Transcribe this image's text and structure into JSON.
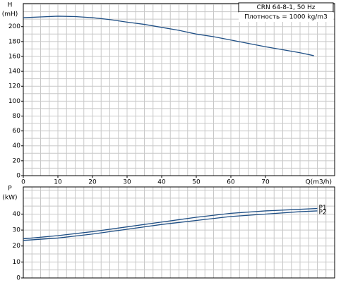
{
  "chart_data": [
    {
      "type": "line",
      "title": "CRN 64-8-1, 50 Hz",
      "subtitle": "Плотность = 1000 kg/m3",
      "ylabel": "H",
      "ylabel_unit": "(mH)",
      "xlabel": "Q(m3/h)",
      "x": [
        0,
        5,
        10,
        15,
        20,
        25,
        30,
        35,
        40,
        45,
        50,
        55,
        60,
        65,
        70,
        75,
        80,
        84
      ],
      "values": [
        212,
        213,
        214,
        213.5,
        212,
        209.5,
        206,
        203,
        199,
        195,
        190,
        186.5,
        182,
        177.5,
        173,
        169,
        165,
        161
      ],
      "color": "#1f4f85",
      "xlim": [
        0,
        90
      ],
      "xticks": [
        0,
        10,
        20,
        30,
        40,
        50,
        60,
        70
      ],
      "ylim": [
        0,
        231
      ],
      "yticks": [
        0,
        20,
        40,
        60,
        80,
        100,
        120,
        140,
        160,
        180,
        200
      ],
      "grid": true,
      "grid_step": {
        "x": 2.5,
        "y": 10
      }
    },
    {
      "type": "line",
      "ylabel": "P",
      "ylabel_unit": "(kW)",
      "x": [
        0,
        10,
        20,
        30,
        40,
        50,
        60,
        70,
        80,
        85
      ],
      "series": [
        {
          "name": "P1",
          "color": "#1f4f85",
          "values": [
            24.5,
            26.5,
            29,
            32,
            35,
            38,
            40.5,
            42,
            43,
            43.5
          ]
        },
        {
          "name": "P2",
          "color": "#1f4f85",
          "values": [
            23.5,
            25,
            27.5,
            30.5,
            33.5,
            36,
            38.5,
            40,
            41.5,
            42
          ]
        }
      ],
      "xlim": [
        0,
        90
      ],
      "ylim": [
        0,
        57
      ],
      "yticks": [
        0,
        10,
        20,
        30,
        40
      ],
      "grid": true,
      "grid_step": {
        "x": 2.5,
        "y": 5
      }
    }
  ]
}
